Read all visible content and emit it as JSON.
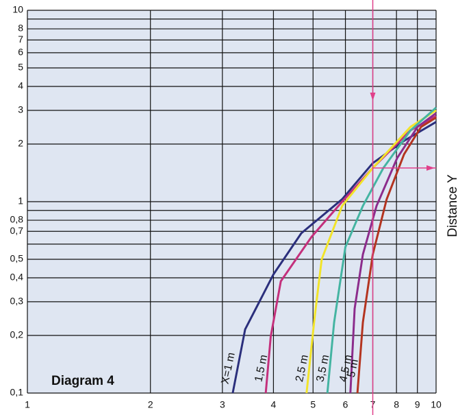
{
  "chart_data": {
    "type": "line",
    "title": "Diagram 4",
    "y_axis_label": "Distance Y",
    "xscale": "log",
    "yscale": "log",
    "grid": true,
    "xlim": [
      1,
      10
    ],
    "ylim": [
      0.1,
      10
    ],
    "xticks": [
      1,
      2,
      3,
      4,
      5,
      6,
      7,
      8,
      9,
      10
    ],
    "yticks": [
      10,
      8,
      7,
      6,
      5,
      4,
      3,
      2,
      1,
      {
        "value": 0.8,
        "label": "0,8"
      },
      {
        "value": 0.7,
        "label": "0,7"
      },
      {
        "value": 0.5,
        "label": "0,5"
      },
      {
        "value": 0.4,
        "label": "0,4"
      },
      {
        "value": 0.3,
        "label": "0,3"
      },
      {
        "value": 0.2,
        "label": "0,2"
      },
      {
        "value": 0.1,
        "label": "0,1"
      }
    ],
    "y_minor_ticks": [
      9,
      0.9,
      0.6
    ],
    "marker_x": 7,
    "marker_y": 1.5,
    "marker_color": "#e0408a",
    "series": [
      {
        "name": "X=1 m",
        "color": "#2b2f7c",
        "x": [
          3.18,
          3.41,
          4.0,
          4.68,
          5.89,
          7.0,
          8.35,
          10
        ],
        "values": [
          0.1,
          0.215,
          0.417,
          0.684,
          1.03,
          1.59,
          2.08,
          2.61
        ]
      },
      {
        "name": "1,5 m",
        "color": "#c4307c",
        "x": [
          3.83,
          3.94,
          4.17,
          4.96,
          5.89,
          7.0,
          8.66,
          10
        ],
        "values": [
          0.1,
          0.198,
          0.384,
          0.656,
          1.0,
          1.5,
          2.36,
          2.8
        ]
      },
      {
        "name": "2,5 m",
        "color": "#f2e42a",
        "x": [
          4.82,
          5.05,
          5.25,
          5.89,
          7.0,
          8.66,
          10
        ],
        "values": [
          0.1,
          0.254,
          0.5,
          0.95,
          1.5,
          2.46,
          3.0
        ]
      },
      {
        "name": "3,5 m",
        "color": "#44b4a2",
        "x": [
          5.42,
          5.63,
          6.0,
          6.62,
          7.43,
          8.66,
          10
        ],
        "values": [
          0.1,
          0.234,
          0.58,
          0.95,
          1.5,
          2.36,
          3.1
        ]
      },
      {
        "name": "4,5 m",
        "color": "#8c2c8c",
        "x": [
          6.17,
          6.32,
          6.62,
          7.15,
          8.03,
          9.01,
          10
        ],
        "values": [
          0.1,
          0.276,
          0.53,
          0.95,
          1.69,
          2.46,
          2.9
        ]
      },
      {
        "name": "5 m",
        "color": "#b43420",
        "x": [
          6.42,
          6.62,
          7.0,
          7.57,
          8.35,
          9.19,
          10
        ],
        "values": [
          0.1,
          0.234,
          0.53,
          1.03,
          1.77,
          2.46,
          2.75
        ]
      }
    ]
  }
}
